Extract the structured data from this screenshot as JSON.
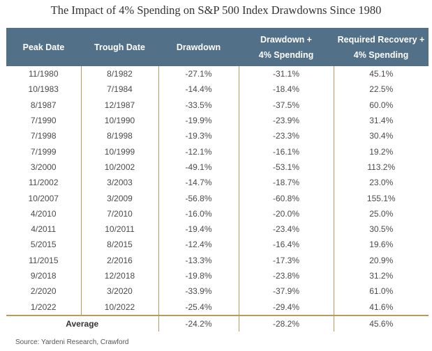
{
  "title": "The Impact of 4% Spending on S&P 500 Index Drawdowns Since 1980",
  "headers": [
    "Peak Date",
    "Trough Date",
    "Drawdown",
    "Drawdown +",
    "4% Spending",
    "Required Recovery +",
    "4% Spending"
  ],
  "rows": [
    [
      "11/1980",
      "8/1982",
      "-27.1%",
      "-31.1%",
      "45.1%"
    ],
    [
      "10/1983",
      "7/1984",
      "-14.4%",
      "-18.4%",
      "22.5%"
    ],
    [
      "8/1987",
      "12/1987",
      "-33.5%",
      "-37.5%",
      "60.0%"
    ],
    [
      "7/1990",
      "10/1990",
      "-19.9%",
      "-23.9%",
      "31.4%"
    ],
    [
      "7/1998",
      "8/1998",
      "-19.3%",
      "-23.3%",
      "30.4%"
    ],
    [
      "7/1999",
      "10/1999",
      "-12.1%",
      "-16.1%",
      "19.2%"
    ],
    [
      "3/2000",
      "10/2002",
      "-49.1%",
      "-53.1%",
      "113.2%"
    ],
    [
      "11/2002",
      "3/2003",
      "-14.7%",
      "-18.7%",
      "23.0%"
    ],
    [
      "10/2007",
      "3/2009",
      "-56.8%",
      "-60.8%",
      "155.1%"
    ],
    [
      "4/2010",
      "7/2010",
      "-16.0%",
      "-20.0%",
      "25.0%"
    ],
    [
      "4/2011",
      "10/2011",
      "-19.4%",
      "-23.4%",
      "30.5%"
    ],
    [
      "5/2015",
      "8/2015",
      "-12.4%",
      "-16.4%",
      "19.6%"
    ],
    [
      "11/2015",
      "2/2016",
      "-13.3%",
      "-17.3%",
      "20.9%"
    ],
    [
      "9/2018",
      "12/2018",
      "-19.8%",
      "-23.8%",
      "31.2%"
    ],
    [
      "2/2020",
      "3/2020",
      "-33.9%",
      "-37.9%",
      "61.0%"
    ],
    [
      "1/2022",
      "10/2022",
      "-25.4%",
      "-29.4%",
      "41.6%"
    ]
  ],
  "average": {
    "label": "Average",
    "values": [
      "-24.2%",
      "-28.2%",
      "45.6%"
    ]
  },
  "source": "Source: Yardeni Research, Crawford"
}
